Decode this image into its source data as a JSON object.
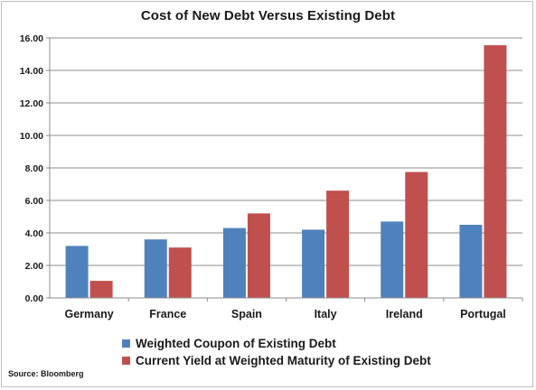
{
  "chart_data": {
    "type": "bar",
    "title": "Cost of New Debt Versus Existing Debt",
    "xlabel": "",
    "ylabel": "",
    "categories": [
      "Germany",
      "France",
      "Spain",
      "Italy",
      "Ireland",
      "Portugal"
    ],
    "series": [
      {
        "name": "Weighted Coupon of Existing Debt",
        "color": "#4f81bd",
        "values": [
          3.2,
          3.6,
          4.3,
          4.2,
          4.7,
          4.5
        ]
      },
      {
        "name": "Current Yield at Weighted Maturity of Existing Debt",
        "color": "#c0504d",
        "values": [
          1.05,
          3.1,
          5.2,
          6.6,
          7.75,
          15.55
        ]
      }
    ],
    "ylim": [
      0,
      16
    ],
    "yticks": [
      "0.00",
      "2.00",
      "4.00",
      "6.00",
      "8.00",
      "10.00",
      "12.00",
      "14.00",
      "16.00"
    ],
    "grid": true,
    "legend_position": "bottom"
  },
  "source_note": "Source: Bloomberg"
}
